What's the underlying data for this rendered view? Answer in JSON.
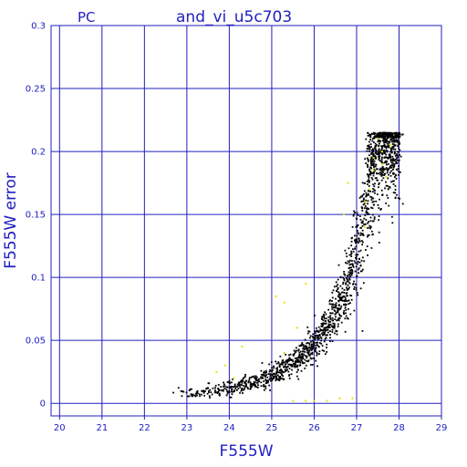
{
  "header": {
    "camera": "PC",
    "field": "and_vi_u5c703"
  },
  "colors": {
    "axis": "#2020c0",
    "grid": "#2020c0",
    "points_main": "#000000",
    "points_flagged": "#e8e000",
    "background": "#ffffff"
  },
  "chart_data": {
    "type": "scatter",
    "title": "and_vi_u5c703",
    "xlabel": "F555W",
    "ylabel": "F555W error",
    "xlim": [
      19.8,
      29
    ],
    "ylim": [
      -0.01,
      0.3
    ],
    "xticks": [
      20,
      21,
      22,
      23,
      24,
      25,
      26,
      27,
      28,
      29
    ],
    "yticks": [
      0,
      0.05,
      0.1,
      0.15,
      0.2,
      0.25,
      0.3
    ],
    "ytick_labels": [
      "0",
      "0.05",
      "0.1",
      "0.15",
      "0.2",
      "0.25",
      "0.3"
    ],
    "grid": true,
    "series": [
      {
        "color": "black",
        "trend": [
          [
            22.5,
            0.006
          ],
          [
            23,
            0.007
          ],
          [
            23.5,
            0.009
          ],
          [
            24,
            0.012
          ],
          [
            24.5,
            0.016
          ],
          [
            25,
            0.022
          ],
          [
            25.5,
            0.032
          ],
          [
            25.8,
            0.04
          ],
          [
            26,
            0.048
          ],
          [
            26.3,
            0.06
          ],
          [
            26.6,
            0.078
          ],
          [
            26.9,
            0.105
          ],
          [
            27.1,
            0.135
          ],
          [
            27.3,
            0.165
          ],
          [
            27.5,
            0.195
          ],
          [
            27.6,
            0.212
          ],
          [
            27.8,
            0.215
          ],
          [
            28.0,
            0.215
          ]
        ],
        "x_range": [
          22.4,
          28.0
        ],
        "y_range": [
          0.005,
          0.215
        ]
      },
      {
        "color": "yellow",
        "points": [
          [
            23.7,
            0.025
          ],
          [
            23.9,
            0.03
          ],
          [
            24.3,
            0.045
          ],
          [
            24.1,
            0.02
          ],
          [
            25.1,
            0.085
          ],
          [
            25.3,
            0.08
          ],
          [
            25.3,
            0.04
          ],
          [
            25.6,
            0.06
          ],
          [
            25.8,
            0.095
          ],
          [
            25.5,
            0.002
          ],
          [
            25.8,
            0.002
          ],
          [
            26.0,
            0.002
          ],
          [
            26.3,
            0.002
          ],
          [
            26.6,
            0.004
          ],
          [
            26.9,
            0.004
          ],
          [
            26.7,
            0.15
          ],
          [
            26.8,
            0.175
          ],
          [
            27.2,
            0.14
          ],
          [
            27.3,
            0.17
          ],
          [
            27.4,
            0.195
          ],
          [
            27.5,
            0.21
          ],
          [
            27.6,
            0.2
          ],
          [
            27.7,
            0.18
          ],
          [
            27.8,
            0.205
          ],
          [
            27.2,
            0.16
          ],
          [
            27.4,
            0.185
          ],
          [
            27.6,
            0.19
          ]
        ]
      }
    ]
  }
}
